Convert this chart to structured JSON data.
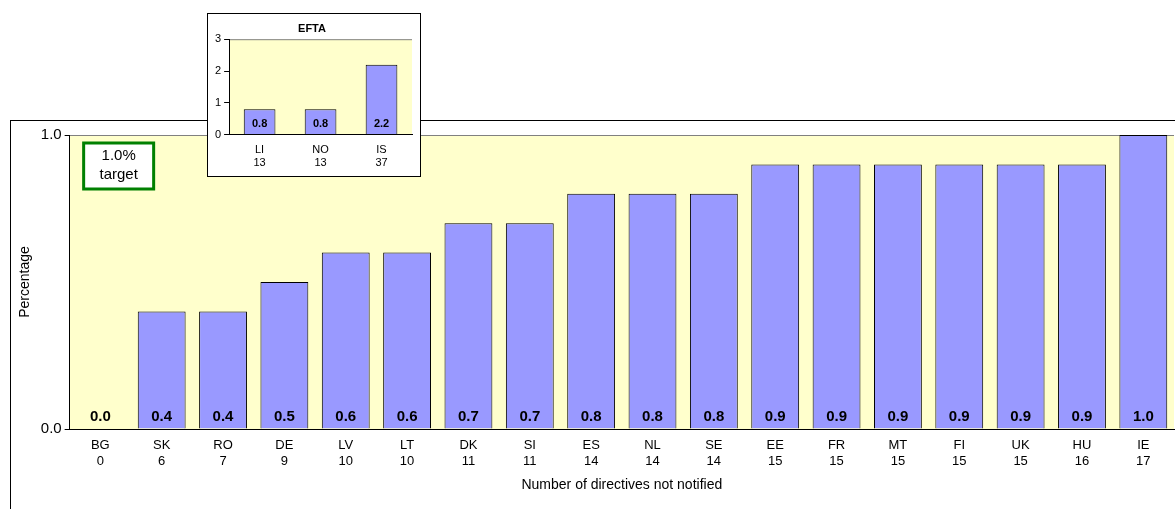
{
  "chart_data": [
    {
      "type": "bar",
      "xlabel": "Number of directives not notified",
      "ylabel": "Percentage",
      "categories": [
        "BG\n0",
        "SK\n6",
        "RO\n7",
        "DE\n9",
        "LV\n10",
        "LT\n10",
        "DK\n11",
        "SI\n11",
        "ES\n14",
        "NL\n14",
        "SE\n14",
        "EE\n15",
        "FR\n15",
        "MT\n15",
        "FI\n15",
        "UK\n15",
        "HU\n16",
        "IE\n17"
      ],
      "values": [
        0,
        0.4,
        0.4,
        0.5,
        0.6,
        0.6,
        0.7,
        0.7,
        0.8,
        0.8,
        0.8,
        0.9,
        0.9,
        0.9,
        0.9,
        0.9,
        0.9,
        1.0
      ],
      "value_labels": [
        "0.0",
        "0.4",
        "0.4",
        "0.5",
        "0.6",
        "0.6",
        "0.7",
        "0.7",
        "0.8",
        "0.8",
        "0.8",
        "0.9",
        "0.9",
        "0.9",
        "0.9",
        "0.9",
        "0.9",
        "1.0"
      ],
      "color": "#9999ff",
      "ylim": [
        0,
        1
      ],
      "yticks": [
        {
          "value": 0,
          "label": "0.0"
        },
        {
          "value": 1,
          "label": "1.0"
        }
      ],
      "annotations": [
        "1.0% target"
      ],
      "grid": false,
      "legend": false
    },
    {
      "type": "bar",
      "title": "EFTA",
      "categories": [
        "LI\n13",
        "NO\n13",
        "IS\n37"
      ],
      "values": [
        0.8,
        0.8,
        2.2
      ],
      "value_labels": [
        "0.8",
        "0.8",
        "2.2"
      ],
      "color": "#9999ff",
      "ylim": [
        0,
        3
      ],
      "yticks": [
        0,
        1,
        2,
        3
      ],
      "grid": false,
      "legend": false
    }
  ]
}
